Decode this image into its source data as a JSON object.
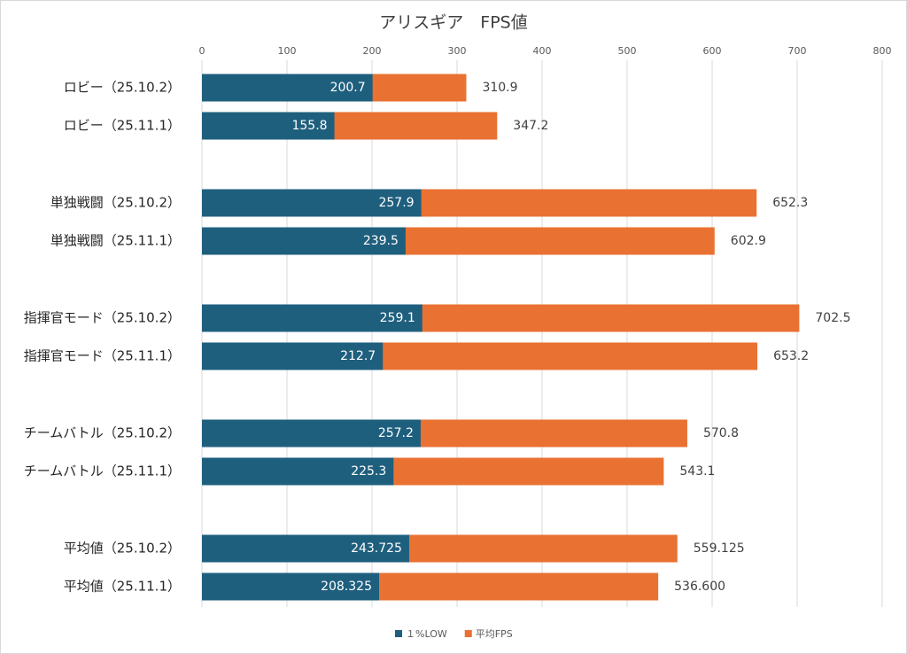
{
  "chart_data": {
    "type": "bar",
    "orientation": "horizontal",
    "overlap": true,
    "title": "アリスギア　FPS値",
    "categories": [
      "ロビー（25.10.2）",
      "ロビー（25.11.1）",
      "単独戦闘（25.10.2）",
      "単独戦闘（25.11.1）",
      "指揮官モード（25.10.2）",
      "指揮官モード（25.11.1）",
      "チームバトル（25.10.2）",
      "チームバトル（25.11.1）",
      "平均値（25.10.2）",
      "平均値（25.11.1）"
    ],
    "series": [
      {
        "name": "１%LOW",
        "color": "#1f5f7e",
        "values": [
          200.7,
          155.8,
          257.9,
          239.5,
          259.1,
          212.7,
          257.2,
          225.3,
          243.725,
          208.325
        ]
      },
      {
        "name": "平均FPS",
        "color": "#e97132",
        "values": [
          310.9,
          347.2,
          652.3,
          602.9,
          702.5,
          653.2,
          570.8,
          543.1,
          559.125,
          536.6
        ],
        "value_labels": [
          "310.9",
          "347.2",
          "652.3",
          "602.9",
          "702.5",
          "653.2",
          "570.8",
          "543.1",
          "559.125",
          "536.600"
        ]
      }
    ],
    "xlim": [
      0,
      800
    ],
    "xticks": [
      0,
      100,
      200,
      300,
      400,
      500,
      600,
      700,
      800
    ],
    "grid": true
  }
}
